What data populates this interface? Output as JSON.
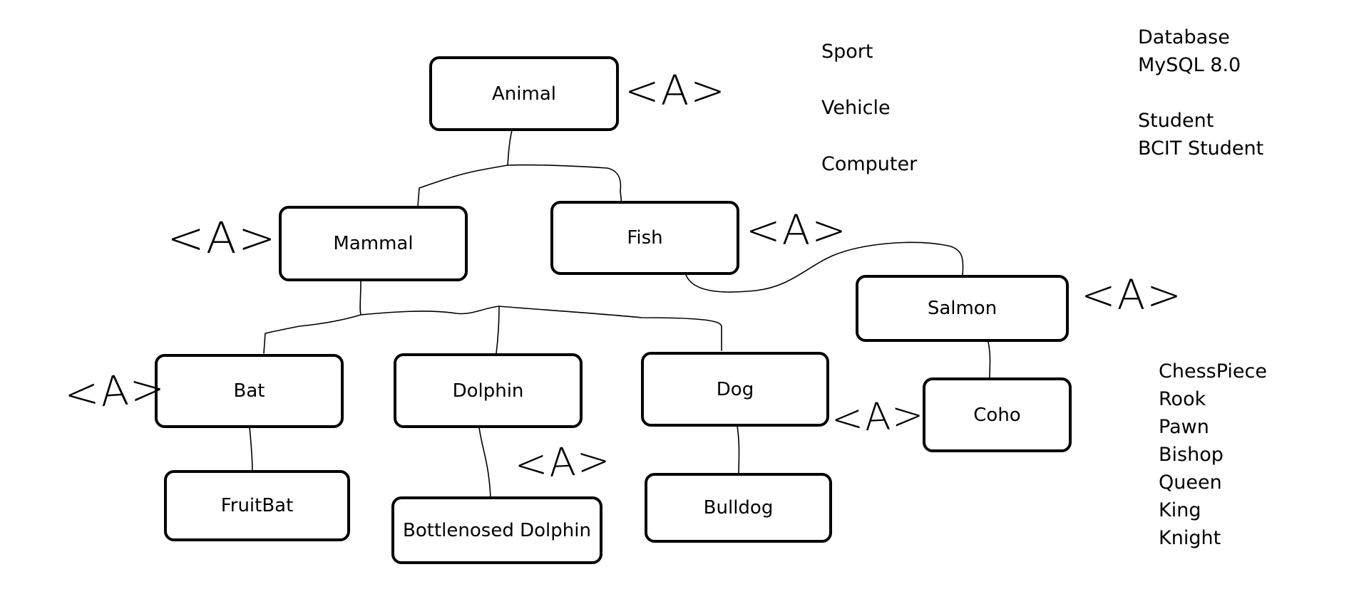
{
  "nodes": {
    "animal": "Animal",
    "mammal": "Mammal",
    "fish": "Fish",
    "salmon": "Salmon",
    "bat": "Bat",
    "dolphin": "Dolphin",
    "dog": "Dog",
    "coho": "Coho",
    "fruitbat": "FruitBat",
    "bottlenosed_dolphin": "Bottlenosed Dolphin",
    "bulldog": "Bulldog"
  },
  "abstract_marker": "<A>",
  "notes": {
    "middle_list": [
      "Sport",
      "Vehicle",
      "Computer"
    ],
    "right_list": [
      "Database",
      "MySQL 8.0",
      "",
      "Student",
      "BCIT Student"
    ],
    "chess_list": [
      "ChessPiece",
      "Rook",
      "Pawn",
      "Bishop",
      "Queen",
      "King",
      "Knight"
    ]
  }
}
